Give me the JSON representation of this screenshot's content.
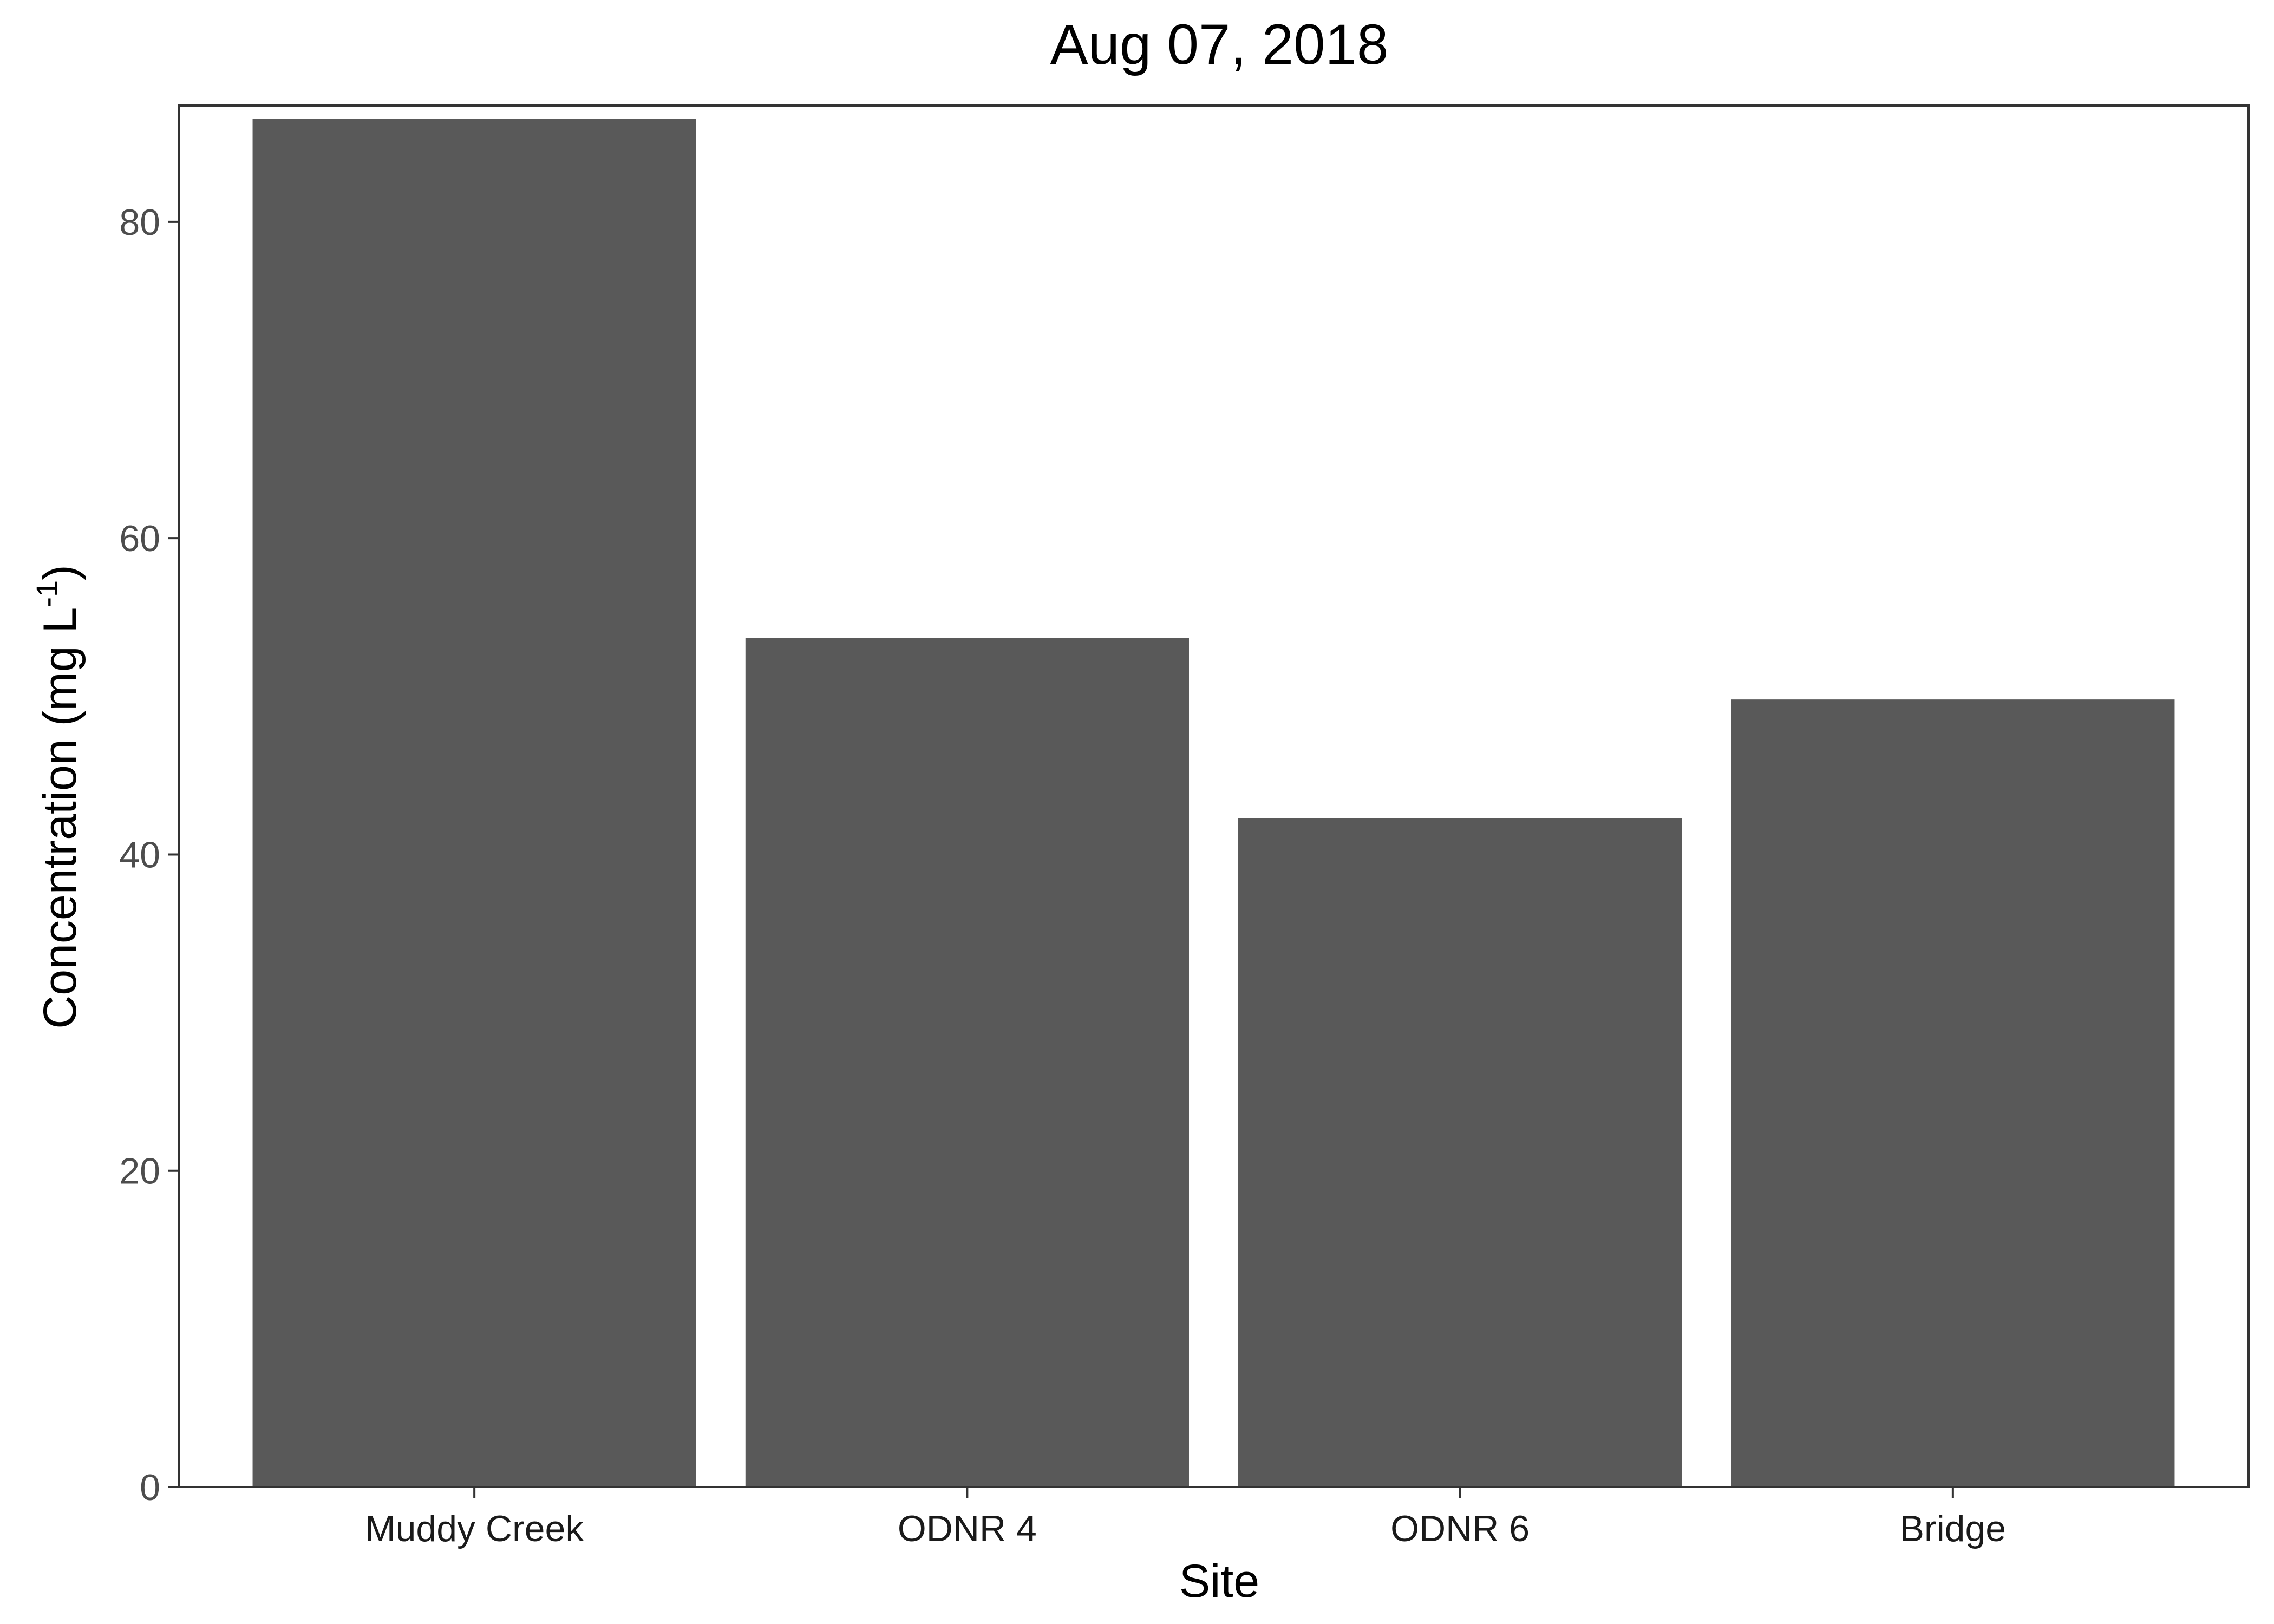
{
  "chart_data": {
    "type": "bar",
    "title": "Aug 07, 2018",
    "xlabel": "Site",
    "ylabel": "Concentration (mg L",
    "ylabel_superscript": "-1",
    "ylabel_close": ")",
    "categories": [
      "Muddy Creek",
      "ODNR 4",
      "ODNR 6",
      "Bridge"
    ],
    "values": [
      86.5,
      53.7,
      42.3,
      49.8
    ],
    "ylim": [
      0,
      87
    ],
    "yticks": [
      0,
      20,
      40,
      60,
      80
    ],
    "ytick_labels": [
      "0",
      "20",
      "40",
      "60",
      "80"
    ],
    "grid": false,
    "legend": "none",
    "colors": {
      "bar": "#595959",
      "panel_border": "#333333",
      "background": "#ffffff"
    }
  }
}
